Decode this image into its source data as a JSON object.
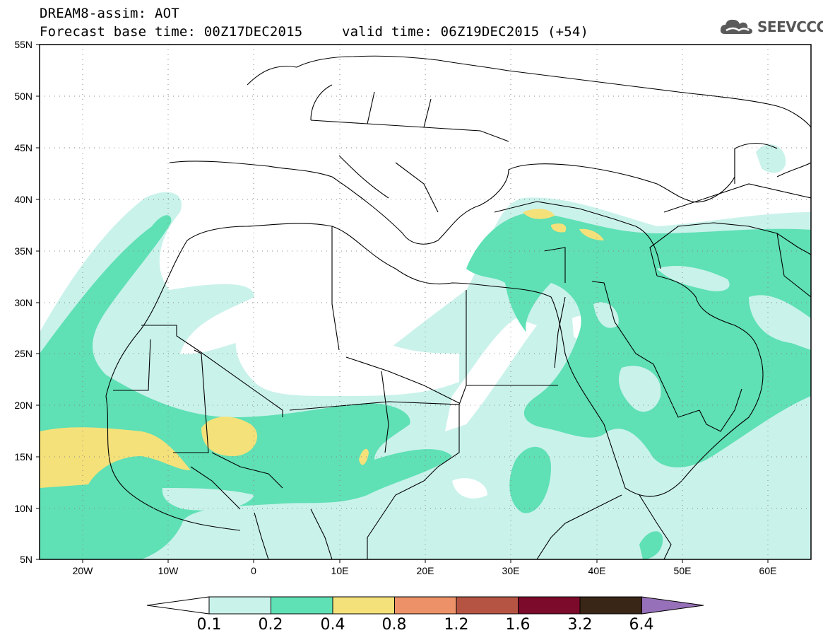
{
  "header": {
    "title_line1": "DREAM8-assim: AOT",
    "title_line2": "Forecast base time: 00Z17DEC2015",
    "valid_time": "valid time: 06Z19DEC2015 (+54)",
    "logo_text": "SEEVCCC",
    "logo_icon": "cloud-logo-icon"
  },
  "map": {
    "lon_labels": [
      "20W",
      "10W",
      "0",
      "10E",
      "20E",
      "30E",
      "40E",
      "50E",
      "60E"
    ],
    "lat_labels": [
      "55N",
      "50N",
      "45N",
      "40N",
      "35N",
      "30N",
      "25N",
      "20N",
      "15N",
      "10N",
      "5N"
    ],
    "lon_range": [
      -25,
      65
    ],
    "lat_range": [
      5,
      55
    ],
    "grid": "dotted"
  },
  "colorbar": {
    "labels": [
      "0.1",
      "0.2",
      "0.4",
      "0.8",
      "1.2",
      "1.6",
      "3.2",
      "6.4"
    ],
    "colors": [
      "#c9f2ea",
      "#5fe0b5",
      "#f5e17a",
      "#ec9168",
      "#b65444",
      "#7c0a2a",
      "#3a2616",
      "#9670b8"
    ],
    "low_arrow_color": "#ffffff"
  }
}
